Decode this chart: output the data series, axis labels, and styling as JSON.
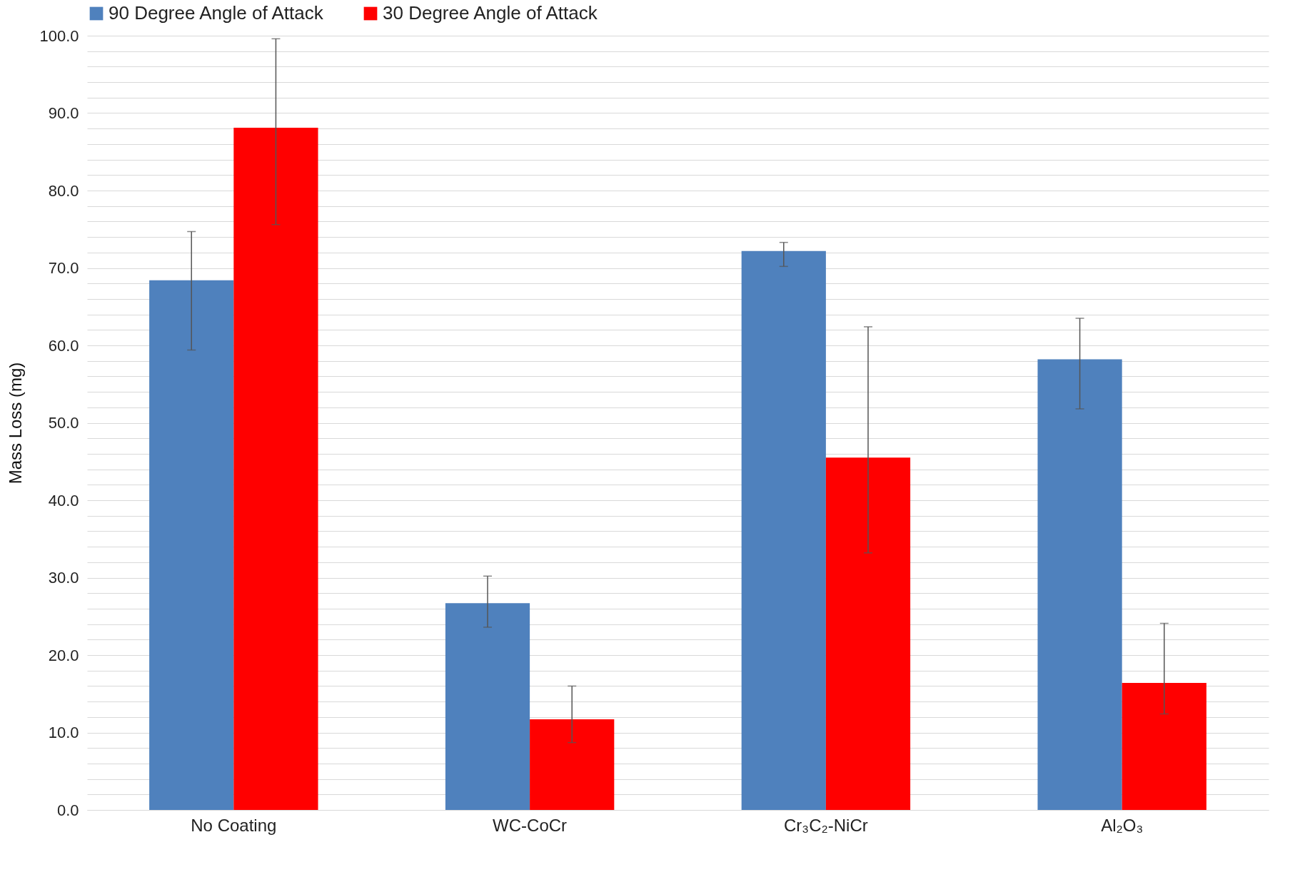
{
  "chart_data": {
    "type": "bar",
    "ylabel": "Mass Loss (mg)",
    "categories": [
      "No Coating",
      "WC-CoCr",
      "Cr₃C₂-NiCr",
      "Al₂O₃"
    ],
    "series": [
      {
        "name": "90 Degree Angle of Attack",
        "color": "#4f81bd",
        "values": [
          68.4,
          26.7,
          72.2,
          58.2
        ],
        "errors": [
          [
            59.4,
            74.7
          ],
          [
            23.6,
            30.2
          ],
          [
            70.2,
            73.3
          ],
          [
            51.8,
            63.5
          ]
        ]
      },
      {
        "name": "30 Degree Angle of Attack",
        "color": "#ff0000",
        "values": [
          88.1,
          11.7,
          45.5,
          16.4
        ],
        "errors": [
          [
            75.6,
            99.6
          ],
          [
            8.7,
            16.0
          ],
          [
            33.2,
            62.4
          ],
          [
            12.4,
            24.1
          ]
        ]
      }
    ],
    "ylim": [
      0,
      100
    ],
    "yticks": [
      {
        "value": 0,
        "label": "0.0"
      },
      {
        "value": 2,
        "label": null
      },
      {
        "value": 4,
        "label": null
      },
      {
        "value": 6,
        "label": null
      },
      {
        "value": 8,
        "label": null
      },
      {
        "value": 10,
        "label": "10.0"
      },
      {
        "value": 12,
        "label": null
      },
      {
        "value": 14,
        "label": null
      },
      {
        "value": 16,
        "label": null
      },
      {
        "value": 18,
        "label": null
      },
      {
        "value": 20,
        "label": "20.0"
      },
      {
        "value": 22,
        "label": null
      },
      {
        "value": 24,
        "label": null
      },
      {
        "value": 26,
        "label": null
      },
      {
        "value": 28,
        "label": null
      },
      {
        "value": 30,
        "label": "30.0"
      },
      {
        "value": 32,
        "label": null
      },
      {
        "value": 34,
        "label": null
      },
      {
        "value": 36,
        "label": null
      },
      {
        "value": 38,
        "label": null
      },
      {
        "value": 40,
        "label": "40.0"
      },
      {
        "value": 42,
        "label": null
      },
      {
        "value": 44,
        "label": null
      },
      {
        "value": 46,
        "label": null
      },
      {
        "value": 48,
        "label": null
      },
      {
        "value": 50,
        "label": "50.0"
      },
      {
        "value": 52,
        "label": null
      },
      {
        "value": 54,
        "label": null
      },
      {
        "value": 56,
        "label": null
      },
      {
        "value": 58,
        "label": null
      },
      {
        "value": 60,
        "label": "60.0"
      },
      {
        "value": 62,
        "label": null
      },
      {
        "value": 64,
        "label": null
      },
      {
        "value": 66,
        "label": null
      },
      {
        "value": 68,
        "label": null
      },
      {
        "value": 70,
        "label": "70.0"
      },
      {
        "value": 72,
        "label": null
      },
      {
        "value": 74,
        "label": null
      },
      {
        "value": 76,
        "label": null
      },
      {
        "value": 78,
        "label": null
      },
      {
        "value": 80,
        "label": "80.0"
      },
      {
        "value": 82,
        "label": null
      },
      {
        "value": 84,
        "label": null
      },
      {
        "value": 86,
        "label": null
      },
      {
        "value": 88,
        "label": null
      },
      {
        "value": 90,
        "label": "90.0"
      },
      {
        "value": 92,
        "label": null
      },
      {
        "value": 94,
        "label": null
      },
      {
        "value": 96,
        "label": null
      },
      {
        "value": 98,
        "label": null
      },
      {
        "value": 100,
        "label": "100.0"
      }
    ],
    "grid": "y",
    "legend": "top"
  }
}
